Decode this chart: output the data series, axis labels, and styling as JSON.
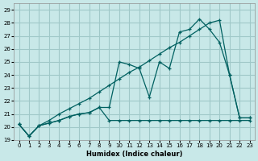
{
  "xlabel": "Humidex (Indice chaleur)",
  "background_color": "#c8e8e8",
  "grid_color": "#a0c8c8",
  "line_color": "#006060",
  "xlim": [
    -0.5,
    23.5
  ],
  "ylim": [
    19,
    29.5
  ],
  "xticks": [
    0,
    1,
    2,
    3,
    4,
    5,
    6,
    7,
    8,
    9,
    10,
    11,
    12,
    13,
    14,
    15,
    16,
    17,
    18,
    19,
    20,
    21,
    22,
    23
  ],
  "yticks": [
    19,
    20,
    21,
    22,
    23,
    24,
    25,
    26,
    27,
    28,
    29
  ],
  "line1_x": [
    0,
    1,
    2,
    3,
    4,
    5,
    6,
    7,
    8,
    9,
    10,
    11,
    12,
    13,
    14,
    15,
    16,
    17,
    18,
    19,
    20,
    21,
    22,
    23
  ],
  "line1_y": [
    20.2,
    19.3,
    20.1,
    20.3,
    20.5,
    20.8,
    21.0,
    21.1,
    21.5,
    20.5,
    20.5,
    20.5,
    20.5,
    20.5,
    20.5,
    20.5,
    20.5,
    20.5,
    20.5,
    20.5,
    20.5,
    20.5,
    20.5,
    20.5
  ],
  "line2_x": [
    0,
    1,
    2,
    3,
    4,
    5,
    6,
    7,
    8,
    9,
    10,
    11,
    12,
    13,
    14,
    15,
    16,
    17,
    18,
    19,
    20,
    21,
    22,
    23
  ],
  "line2_y": [
    20.2,
    19.3,
    20.1,
    20.3,
    20.5,
    20.8,
    21.0,
    21.1,
    21.5,
    21.5,
    25.0,
    24.8,
    24.5,
    22.3,
    25.0,
    24.5,
    27.3,
    27.5,
    28.3,
    27.5,
    26.5,
    24.0,
    20.7,
    20.7
  ],
  "line3_x": [
    0,
    1,
    2,
    3,
    4,
    5,
    6,
    7,
    8,
    9,
    10,
    11,
    12,
    13,
    14,
    15,
    16,
    17,
    18,
    19,
    20,
    21,
    22,
    23
  ],
  "line3_y": [
    20.2,
    19.3,
    20.1,
    20.5,
    21.0,
    21.4,
    21.8,
    22.2,
    22.7,
    23.2,
    23.7,
    24.2,
    24.6,
    25.1,
    25.6,
    26.1,
    26.5,
    27.0,
    27.5,
    28.0,
    28.2,
    24.0,
    20.7,
    20.7
  ]
}
